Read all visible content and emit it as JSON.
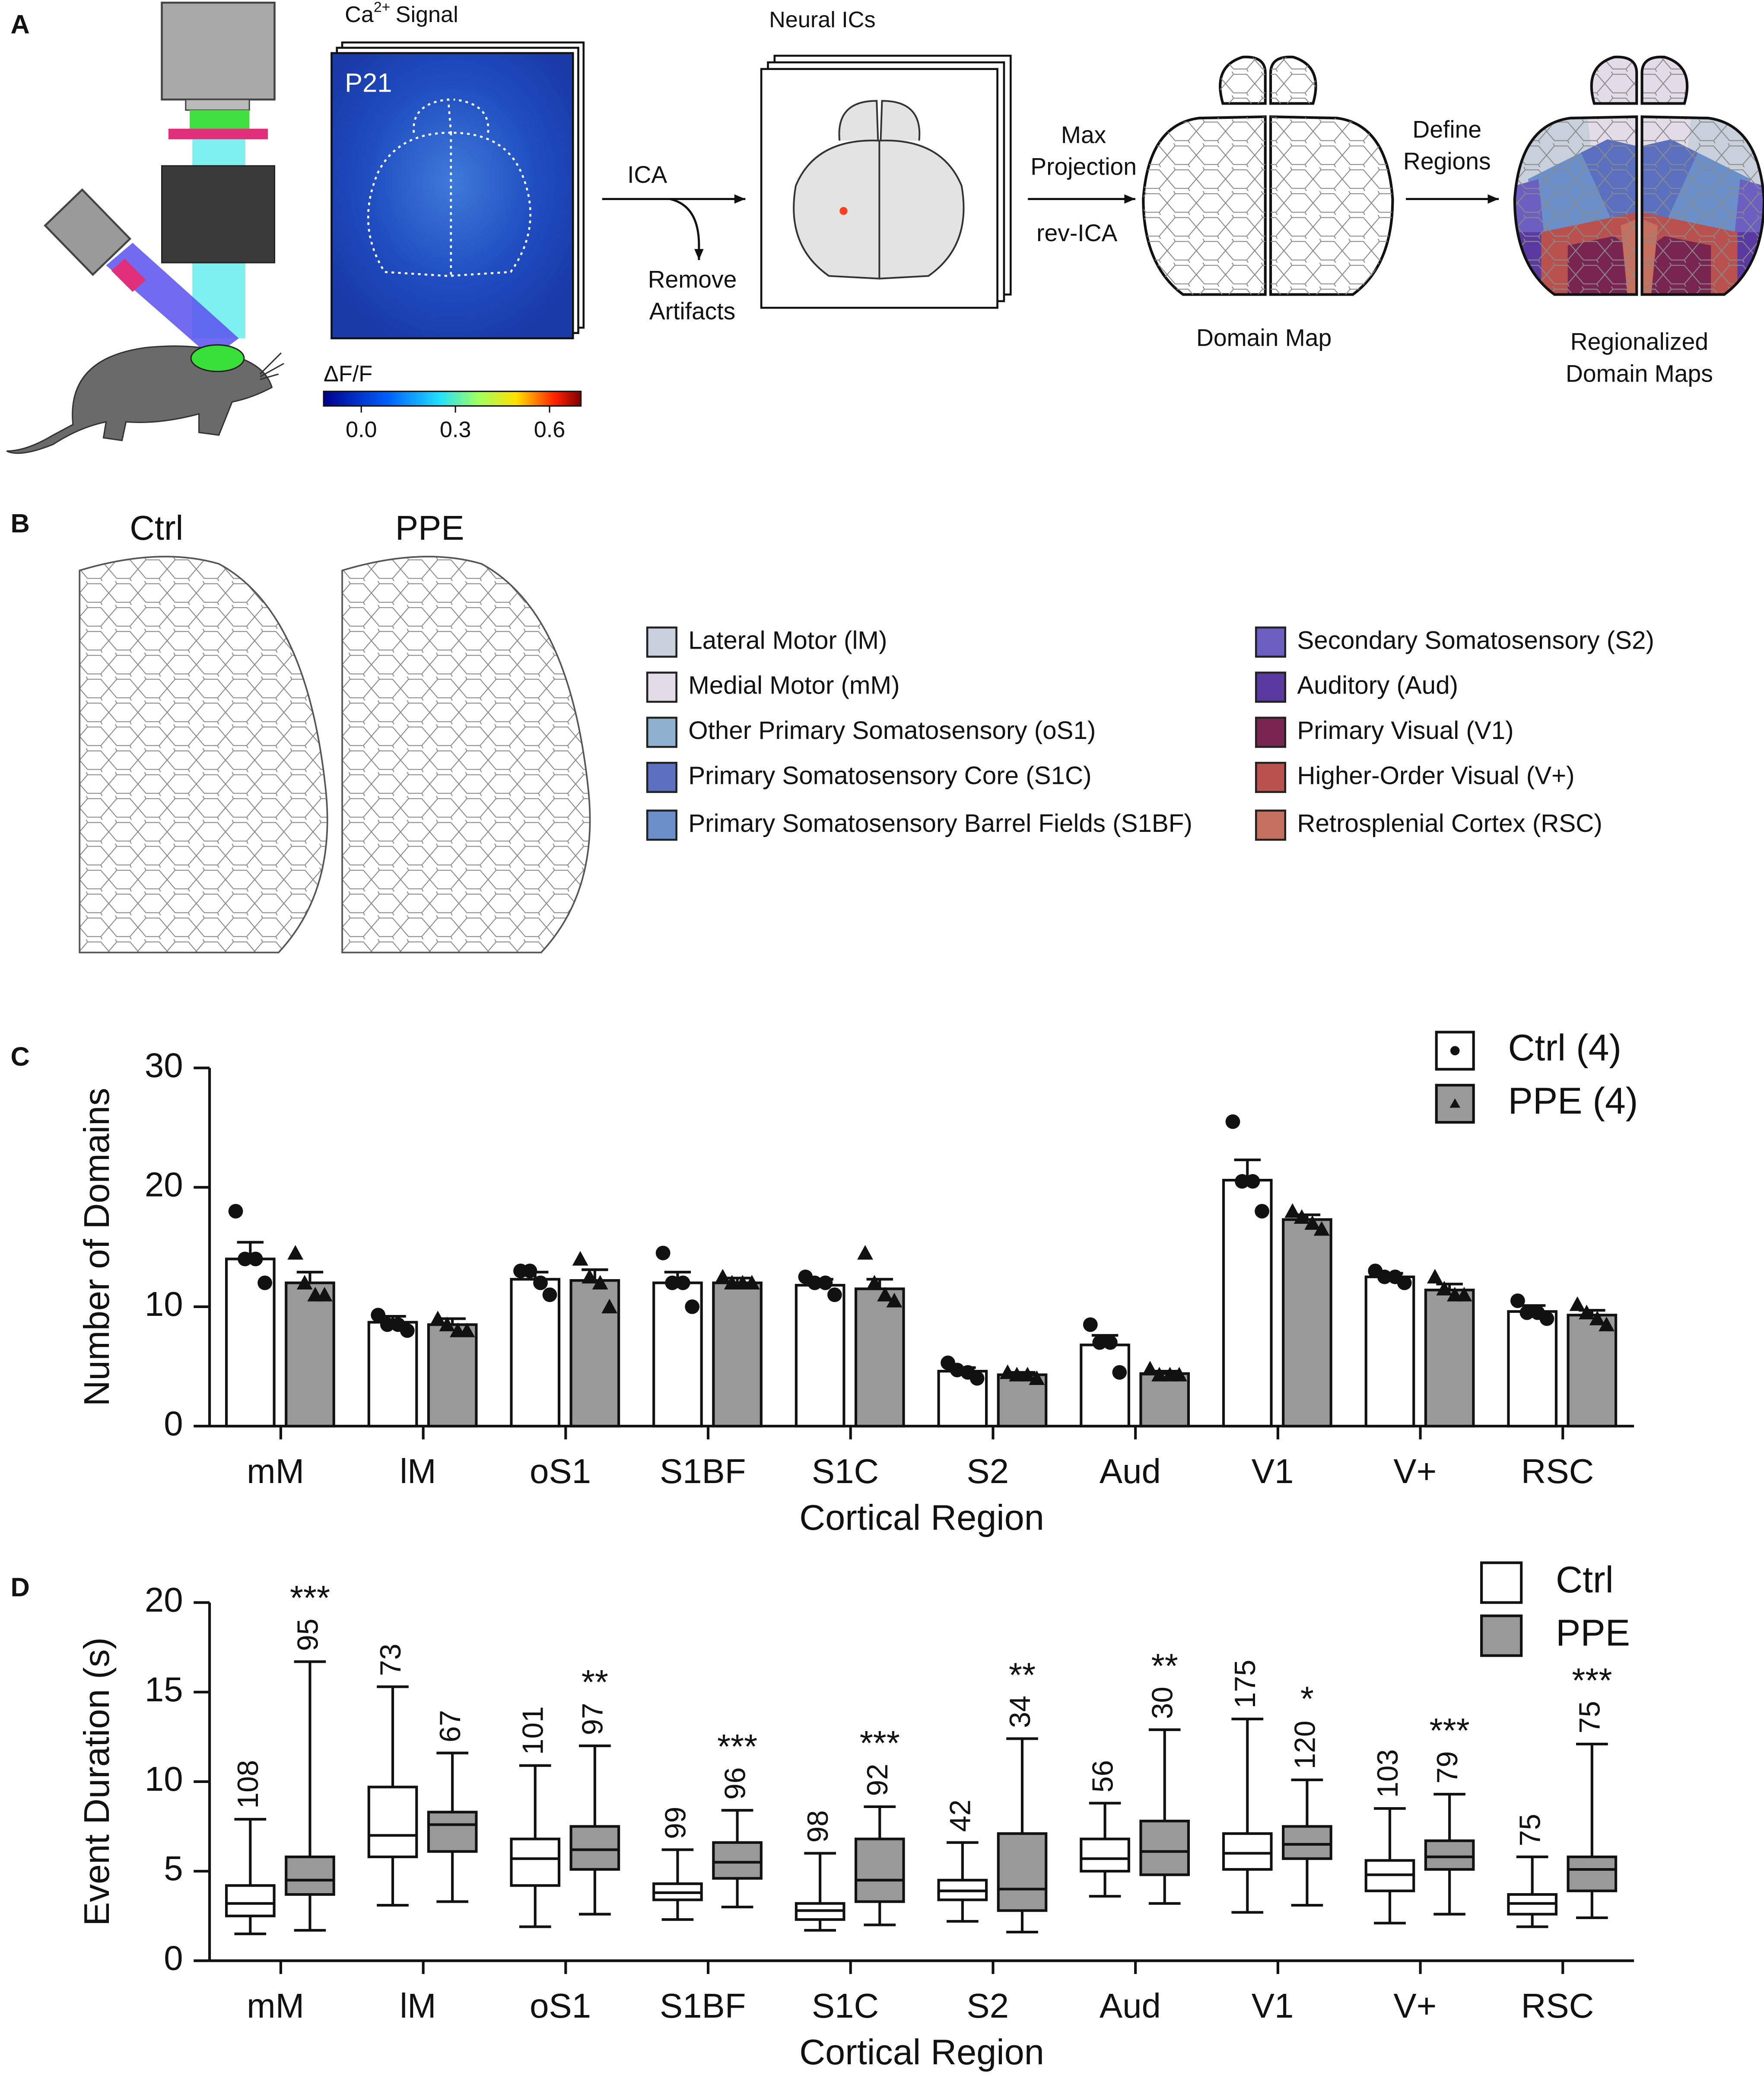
{
  "panel_labels": [
    "A",
    "B",
    "C",
    "D"
  ],
  "panel_a": {
    "ca_signal": [
      "Ca",
      "2+",
      "Signal"
    ],
    "age": "P21",
    "colorbar_label": "ΔF/F",
    "colorbar_lim": [
      -0.12,
      0.7
    ],
    "colorbar_ticks": [
      {
        "value": 0,
        "label": "0.0"
      },
      {
        "value": 0.3,
        "label": "0.3"
      },
      {
        "value": 0.6,
        "label": "0.6"
      }
    ],
    "ica": "ICA",
    "remove_artifacts": [
      "Remove",
      "Artifacts"
    ],
    "neural_ics": "Neural ICs",
    "max_projection": [
      "Max",
      "Projection"
    ],
    "rev_ica": "rev-ICA",
    "define_regions": [
      "Define",
      "Regions"
    ],
    "domain_map": "Domain Map",
    "regionalized": [
      "Regionalized",
      "Domain Maps"
    ]
  },
  "panel_b": {
    "groups": [
      "Ctrl",
      "PPE"
    ],
    "legend": [
      {
        "label": "Lateral Motor (lM)",
        "color": "#c8d0dc"
      },
      {
        "label": "Medial Motor (mM)",
        "color": "#e3dbe5"
      },
      {
        "label": "Other Primary Somatosensory (oS1)",
        "color": "#8fb1d0"
      },
      {
        "label": "Primary Somatosensory Core (S1C)",
        "color": "#5c70c0"
      },
      {
        "label": "Primary Somatosensory Barrel Fields (S1BF)",
        "color": "#6a8fc9"
      },
      {
        "label": "Secondary Somatosensory (S2)",
        "color": "#6b5fc2"
      },
      {
        "label": "Auditory (Aud)",
        "color": "#5a3aa0"
      },
      {
        "label": "Primary Visual (V1)",
        "color": "#7a2452"
      },
      {
        "label": "Higher-Order Visual (V+)",
        "color": "#b9514f"
      },
      {
        "label": "Retrosplenial Cortex (RSC)",
        "color": "#c4705e"
      }
    ]
  },
  "chart_data": [
    {
      "type": "bar",
      "ylabel": "Number of Domains",
      "xlabel": "Cortical Region",
      "categories": [
        "mM",
        "lM",
        "oS1",
        "S1BF",
        "S1C",
        "S2",
        "Aud",
        "V1",
        "V+",
        "RSC"
      ],
      "ylim": [
        0,
        30
      ],
      "yticks": [
        0,
        10,
        20,
        30
      ],
      "series": [
        {
          "name": "Ctrl (4)",
          "color": "#ffffff",
          "marker": "circle",
          "values": [
            14,
            8.7,
            12.3,
            12,
            11.8,
            4.6,
            6.8,
            20.6,
            12.5,
            9.6
          ],
          "errors": [
            1.4,
            0.5,
            0.6,
            0.9,
            0.5,
            0.3,
            0.8,
            1.7,
            0.3,
            0.5
          ],
          "points": [
            [
              18,
              14,
              14,
              12
            ],
            [
              9.3,
              8.5,
              8.5,
              8
            ],
            [
              13,
              13,
              12,
              11
            ],
            [
              14.5,
              12,
              12,
              10
            ],
            [
              12.5,
              12,
              12,
              11
            ],
            [
              5.3,
              4.7,
              4.5,
              4
            ],
            [
              8.5,
              7,
              7,
              4.5
            ],
            [
              25.5,
              20.5,
              20.5,
              18
            ],
            [
              13,
              12.5,
              12.5,
              12
            ],
            [
              10.5,
              9.5,
              9.5,
              9
            ]
          ]
        },
        {
          "name": "PPE (4)",
          "color": "#999999",
          "marker": "triangle",
          "values": [
            12,
            8.5,
            12.2,
            12,
            11.5,
            4.3,
            4.4,
            17.3,
            11.4,
            9.3
          ],
          "errors": [
            0.9,
            0.5,
            0.9,
            0.4,
            0.8,
            0.2,
            0.2,
            0.4,
            0.5,
            0.4
          ],
          "points": [
            [
              14.5,
              12,
              11,
              11
            ],
            [
              9,
              8.5,
              8,
              8
            ],
            [
              14,
              12.5,
              12,
              10
            ],
            [
              12.5,
              12,
              12,
              12
            ],
            [
              14.5,
              12,
              11,
              10.5
            ],
            [
              4.5,
              4.3,
              4.3,
              4
            ],
            [
              4.8,
              4.3,
              4.3,
              4.3
            ],
            [
              18,
              17.5,
              17,
              16.5
            ],
            [
              12.5,
              11.5,
              11,
              11
            ],
            [
              10.2,
              9.5,
              9,
              8.5
            ]
          ]
        }
      ]
    },
    {
      "type": "box",
      "ylabel": "Event Duration (s)",
      "xlabel": "Cortical Region",
      "categories": [
        "mM",
        "lM",
        "oS1",
        "S1BF",
        "S1C",
        "S2",
        "Aud",
        "V1",
        "V+",
        "RSC"
      ],
      "ylim": [
        0,
        20
      ],
      "yticks": [
        0,
        5,
        10,
        15,
        20
      ],
      "series": [
        {
          "name": "Ctrl",
          "color": "#ffffff",
          "min": [
            1.5,
            3.1,
            1.9,
            2.3,
            1.7,
            2.2,
            3.6,
            2.7,
            2.1,
            1.9
          ],
          "q1": [
            2.5,
            5.8,
            4.2,
            3.4,
            2.3,
            3.4,
            5,
            5.1,
            3.9,
            2.6
          ],
          "median": [
            3.2,
            7,
            5.7,
            3.8,
            2.8,
            3.9,
            5.7,
            6,
            4.8,
            3.2
          ],
          "q3": [
            4.2,
            9.7,
            6.8,
            4.3,
            3.2,
            4.5,
            6.8,
            7.1,
            5.6,
            3.7
          ],
          "max": [
            7.9,
            15.3,
            10.9,
            6.2,
            6,
            6.6,
            8.8,
            13.5,
            8.5,
            5.8
          ],
          "n": [
            108,
            73,
            101,
            99,
            98,
            42,
            56,
            175,
            103,
            75
          ]
        },
        {
          "name": "PPE",
          "color": "#999999",
          "min": [
            1.7,
            3.3,
            2.6,
            3,
            2,
            1.6,
            3.2,
            3.1,
            2.6,
            2.4
          ],
          "q1": [
            3.7,
            6.1,
            5.1,
            4.6,
            3.3,
            2.8,
            4.8,
            5.7,
            5.1,
            3.9
          ],
          "median": [
            4.5,
            7.6,
            6.2,
            5.5,
            4.5,
            4,
            6.1,
            6.5,
            5.8,
            5.1
          ],
          "q3": [
            5.8,
            8.3,
            7.5,
            6.6,
            6.8,
            7.1,
            7.8,
            7.5,
            6.7,
            5.8
          ],
          "max": [
            16.7,
            11.6,
            12,
            8.4,
            8.6,
            12.4,
            12.9,
            10.1,
            9.3,
            12.1
          ],
          "n": [
            95,
            67,
            97,
            96,
            92,
            34,
            30,
            120,
            79,
            75
          ],
          "significance": [
            "***",
            null,
            "**",
            "***",
            "***",
            "**",
            "**",
            "*",
            "***",
            "***"
          ]
        }
      ]
    }
  ]
}
